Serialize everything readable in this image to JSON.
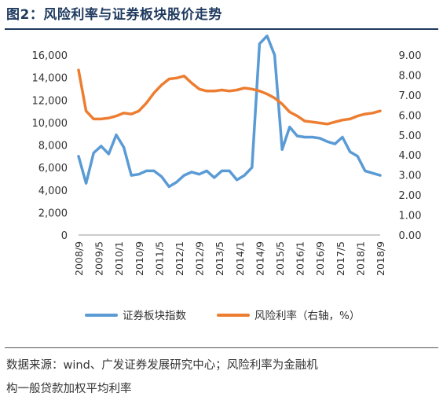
{
  "figure": {
    "title": "图2：风险利率与证券板块股价走势",
    "source_line1": "数据来源：wind、广发证券发展研究中心；风险利率为金融机",
    "source_line2": "构一般贷款加权平均利率"
  },
  "chart_data": {
    "type": "line",
    "x": [
      "2008/9",
      "2008/12",
      "2009/3",
      "2009/6",
      "2009/9",
      "2009/12",
      "2010/3",
      "2010/6",
      "2010/9",
      "2010/12",
      "2011/3",
      "2011/6",
      "2011/9",
      "2011/12",
      "2012/3",
      "2012/6",
      "2012/9",
      "2012/12",
      "2013/3",
      "2013/6",
      "2013/9",
      "2013/12",
      "2014/3",
      "2014/6",
      "2014/9",
      "2014/12",
      "2015/3",
      "2015/6",
      "2015/9",
      "2015/12",
      "2016/3",
      "2016/6",
      "2016/9",
      "2016/12",
      "2017/3",
      "2017/6",
      "2017/9",
      "2017/12",
      "2018/3",
      "2018/6",
      "2018/9"
    ],
    "x_tick_labels": [
      "2008/9",
      "2009/5",
      "2010/1",
      "2010/9",
      "2011/5",
      "2012/1",
      "2012/9",
      "2013/5",
      "2014/1",
      "2014/9",
      "2015/5",
      "2016/1",
      "2016/9",
      "2017/5",
      "2018/1",
      "2018/9"
    ],
    "series": [
      {
        "name": "证券板块指数",
        "axis": "left",
        "color": "#5b9bd5",
        "values": [
          7000,
          4600,
          7300,
          7900,
          7200,
          8900,
          7800,
          5300,
          5400,
          5700,
          5700,
          5200,
          4300,
          4700,
          5300,
          5600,
          5400,
          5700,
          5100,
          5700,
          5700,
          4900,
          5300,
          6000,
          17000,
          17700,
          16000,
          7600,
          9600,
          8800,
          8700,
          8700,
          8600,
          8300,
          8100,
          8700,
          7400,
          7000,
          5700,
          5500,
          5300
        ]
      },
      {
        "name": "风险利率（右轴，%）",
        "axis": "right",
        "color": "#ed7d31",
        "values": [
          8.25,
          6.2,
          5.8,
          5.8,
          5.85,
          5.95,
          6.1,
          6.05,
          6.2,
          6.6,
          7.1,
          7.5,
          7.8,
          7.85,
          7.95,
          7.6,
          7.3,
          7.2,
          7.2,
          7.25,
          7.2,
          7.25,
          7.35,
          7.3,
          7.2,
          7.05,
          6.85,
          6.55,
          6.15,
          5.95,
          5.7,
          5.65,
          5.6,
          5.55,
          5.65,
          5.75,
          5.8,
          5.95,
          6.05,
          6.1,
          6.2
        ]
      }
    ],
    "y_left": {
      "min": 0,
      "max": 16000,
      "ticks": [
        "0",
        "2,000",
        "4,000",
        "6,000",
        "8,000",
        "10,000",
        "12,000",
        "14,000",
        "16,000"
      ]
    },
    "y_right": {
      "min": 0,
      "max": 9,
      "ticks": [
        "0.00",
        "1.00",
        "2.00",
        "3.00",
        "4.00",
        "5.00",
        "6.00",
        "7.00",
        "8.00",
        "9.00"
      ]
    },
    "grid": false,
    "legend": "bottom"
  }
}
